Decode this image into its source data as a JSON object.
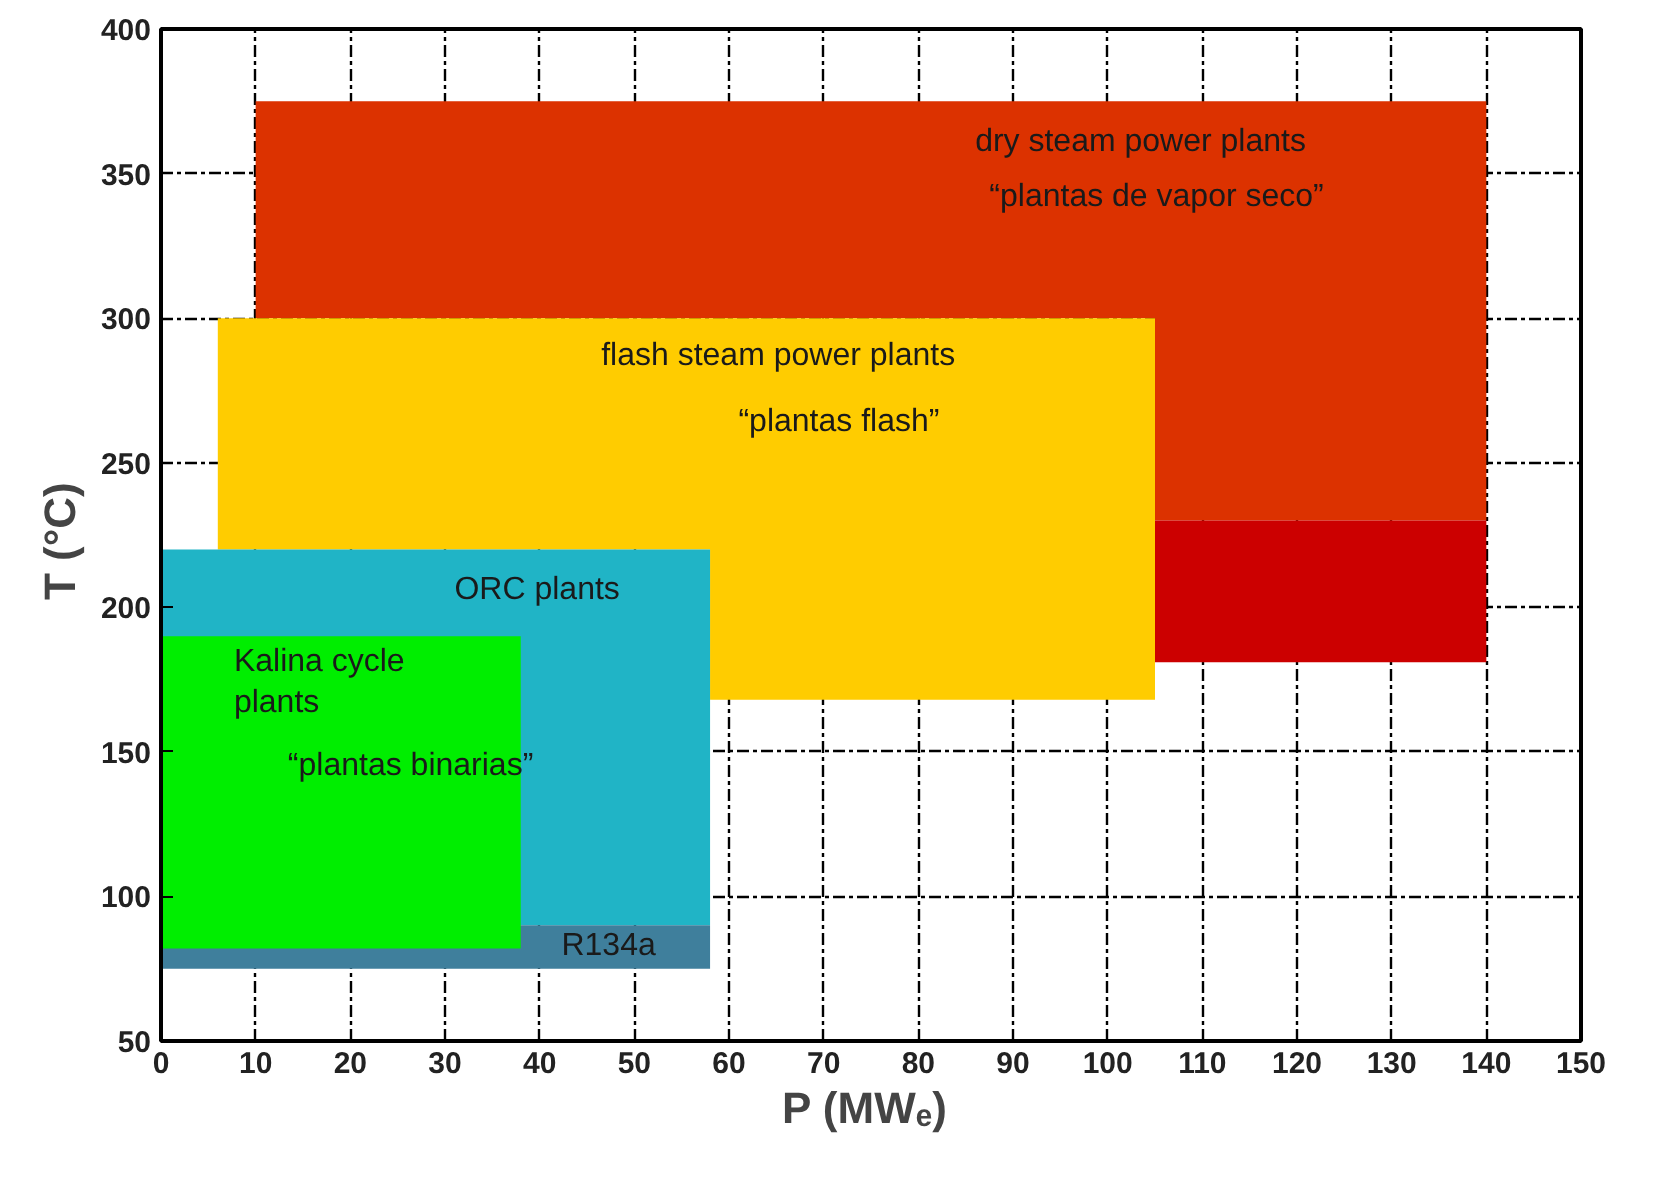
{
  "chart_data": {
    "type": "area",
    "xlabel": "P  (MWₑ)",
    "ylabel": "T  (°C)",
    "xlim": [
      0,
      150
    ],
    "ylim": [
      50,
      400
    ],
    "xticks": [
      0,
      10,
      20,
      30,
      40,
      50,
      60,
      70,
      80,
      90,
      100,
      110,
      120,
      130,
      140,
      150
    ],
    "yticks": [
      50,
      100,
      150,
      200,
      250,
      300,
      350,
      400
    ],
    "grid": true,
    "series": [
      {
        "color": "#dc3200",
        "x": [
          10,
          10,
          140,
          140,
          105,
          105
        ],
        "values": [
          300,
          375,
          375,
          230,
          230,
          300
        ]
      },
      {
        "color": "#cc0000",
        "x": [
          105,
          105,
          140,
          140
        ],
        "values": [
          181,
          230,
          230,
          181
        ]
      },
      {
        "color": "#ffcc00",
        "x": [
          6,
          6,
          105,
          105,
          58,
          58
        ],
        "values": [
          220,
          300,
          300,
          168,
          168,
          220
        ]
      },
      {
        "color": "#20b4c6",
        "x": [
          0,
          0,
          58,
          58
        ],
        "values": [
          90,
          220,
          220,
          90
        ]
      },
      {
        "color": "#3f7f9c",
        "x": [
          0,
          0,
          58,
          58
        ],
        "values": [
          75,
          90,
          90,
          75
        ]
      },
      {
        "color": "#00ee00",
        "x": [
          0,
          0,
          38,
          38
        ],
        "values": [
          82,
          190,
          190,
          82
        ]
      }
    ],
    "annotations": [
      "dry steam power plants",
      "“plantas de vapor seco”",
      "flash steam power plants",
      "“plantas flash”",
      "ORC plants",
      "Kalina cycle\nplants",
      "“plantas binarias”",
      "R134a"
    ]
  }
}
